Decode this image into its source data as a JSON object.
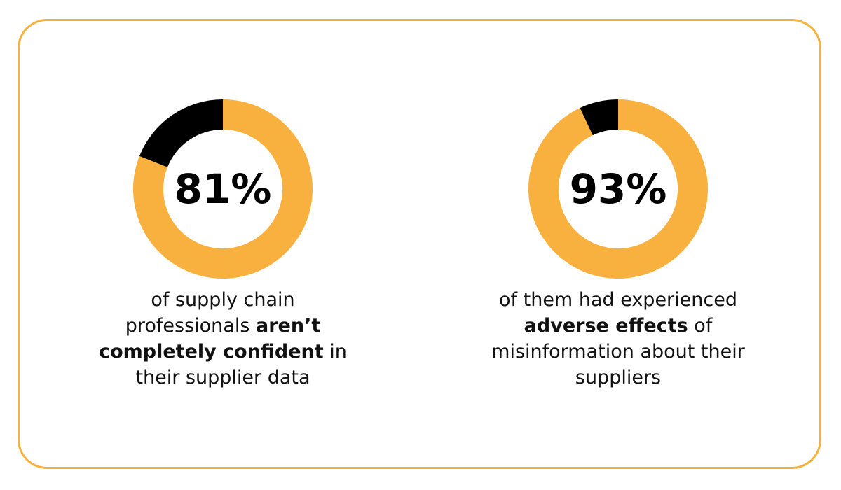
{
  "chart_data": [
    {
      "type": "donut",
      "values": [
        81,
        19
      ],
      "value_labels": [
        "81%",
        null
      ],
      "colors": [
        "#F8B13F",
        "#000000"
      ],
      "caption": [
        {
          "text": "of supply chain professionals ",
          "bold": false
        },
        {
          "text": "aren’t completely confident",
          "bold": true
        },
        {
          "text": " in their supplier data",
          "bold": false
        }
      ]
    },
    {
      "type": "donut",
      "values": [
        93,
        7
      ],
      "value_labels": [
        "93%",
        null
      ],
      "colors": [
        "#F8B13F",
        "#000000"
      ],
      "caption": [
        {
          "text": "of them had experienced ",
          "bold": false
        },
        {
          "text": "adverse effects",
          "bold": true
        },
        {
          "text": " of misinformation about their suppliers",
          "bold": false
        }
      ]
    }
  ]
}
